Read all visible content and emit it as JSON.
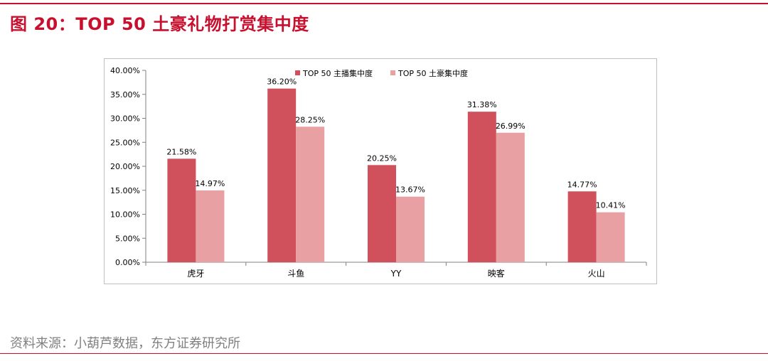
{
  "figure": {
    "title": "图 20：TOP 50 土豪礼物打赏集中度",
    "source": "资料来源：小葫芦数据，东方证券研究所"
  },
  "colors": {
    "accent": "#c8102e",
    "series1": "#d0505b",
    "series2": "#e8a0a3"
  },
  "chart_data": {
    "type": "bar",
    "categories": [
      "虎牙",
      "斗鱼",
      "YY",
      "映客",
      "火山"
    ],
    "series": [
      {
        "name": "TOP 50 主播集中度",
        "values": [
          21.58,
          36.2,
          20.25,
          31.38,
          14.77
        ],
        "labels": [
          "21.58%",
          "36.20%",
          "20.25%",
          "31.38%",
          "14.77%"
        ]
      },
      {
        "name": "TOP 50 土豪集中度",
        "values": [
          14.97,
          28.25,
          13.67,
          26.99,
          10.41
        ],
        "labels": [
          "14.97%",
          "28.25%",
          "13.67%",
          "26.99%",
          "10.41%"
        ]
      }
    ],
    "ylim": [
      0,
      40
    ],
    "yticks": [
      0,
      5,
      10,
      15,
      20,
      25,
      30,
      35,
      40
    ],
    "ytick_labels": [
      "0.00%",
      "5.00%",
      "10.00%",
      "15.00%",
      "20.00%",
      "25.00%",
      "30.00%",
      "35.00%",
      "40.00%"
    ],
    "legend_position": "top-center",
    "grid": false
  }
}
